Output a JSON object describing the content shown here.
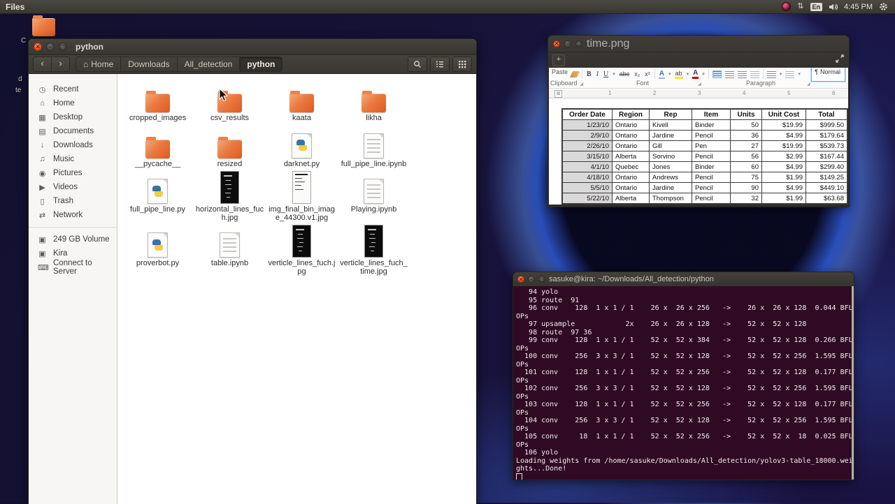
{
  "topbar": {
    "app_name": "Files",
    "keyboard_indicator": "En",
    "clock": "4:45 PM",
    "network_glyph": "⇅"
  },
  "desktop": {
    "label_fragments": [
      "C",
      "d",
      "te"
    ]
  },
  "files_window": {
    "title": "python",
    "nav": {
      "back": "‹",
      "forward": "›"
    },
    "breadcrumbs": {
      "home_glyph": "⌂",
      "home": "Home",
      "downloads": "Downloads",
      "all_detection": "All_detection",
      "python": "python"
    },
    "sidebar": {
      "places": [
        {
          "icon": "recent-icon",
          "glyph": "◷",
          "label": "Recent"
        },
        {
          "icon": "home-icon",
          "glyph": "⌂",
          "label": "Home"
        },
        {
          "icon": "desktop-icon",
          "glyph": "▦",
          "label": "Desktop"
        },
        {
          "icon": "documents-icon",
          "glyph": "▤",
          "label": "Documents"
        },
        {
          "icon": "downloads-icon",
          "glyph": "↓",
          "label": "Downloads"
        },
        {
          "icon": "music-icon",
          "glyph": "♫",
          "label": "Music"
        },
        {
          "icon": "pictures-icon",
          "glyph": "◉",
          "label": "Pictures"
        },
        {
          "icon": "videos-icon",
          "glyph": "▶",
          "label": "Videos"
        },
        {
          "icon": "trash-icon",
          "glyph": "▯",
          "label": "Trash"
        },
        {
          "icon": "network-icon",
          "glyph": "⇄",
          "label": "Network"
        }
      ],
      "devices": [
        {
          "icon": "disk-icon",
          "glyph": "▣",
          "label": "249 GB Volume"
        },
        {
          "icon": "disk-icon",
          "glyph": "▣",
          "label": "Kira"
        },
        {
          "icon": "server-icon",
          "glyph": "⌨",
          "label": "Connect to Server"
        }
      ]
    },
    "files": [
      {
        "name": "cropped_images",
        "kind": "folder"
      },
      {
        "name": "csv_results",
        "kind": "folder"
      },
      {
        "name": "kaata",
        "kind": "folder"
      },
      {
        "name": "likha",
        "kind": "folder"
      },
      {
        "name": "__pycache__",
        "kind": "folder"
      },
      {
        "name": "resized",
        "kind": "folder"
      },
      {
        "name": "darknet.py",
        "kind": "python"
      },
      {
        "name": "full_pipe_line.ipynb",
        "kind": "notebook"
      },
      {
        "name": "full_pipe_line.py",
        "kind": "python"
      },
      {
        "name": "horizontal_lines_fuch.jpg",
        "kind": "image-dark"
      },
      {
        "name": "img_final_bin_image_44300.v1.jpg",
        "kind": "image-light"
      },
      {
        "name": "Playing.ipynb",
        "kind": "notebook"
      },
      {
        "name": "proverbot.py",
        "kind": "python"
      },
      {
        "name": "table.ipynb",
        "kind": "notebook"
      },
      {
        "name": "verticle_lines_fuch.jpg",
        "kind": "image-dark"
      },
      {
        "name": "verticle_lines_fuch_time.jpg",
        "kind": "image-dark"
      }
    ]
  },
  "image_viewer": {
    "title": "time.png",
    "zoom_in_label": "+",
    "ribbon": {
      "paste_label": "Paste",
      "font_buttons": [
        "B",
        "I",
        "U",
        "abc",
        "x₂",
        "x²"
      ],
      "color_buttons": [
        "A",
        "ab",
        "A"
      ],
      "pilcrow": "¶",
      "style_box": "Normal",
      "groups": [
        "Clipboard",
        "Font",
        "Paragraph"
      ],
      "launcher_glyph": "◢"
    },
    "ruler_numbers": [
      "1",
      "2",
      "3",
      "4",
      "5",
      "6"
    ],
    "table": {
      "headers": [
        "Order Date",
        "Region",
        "Rep",
        "Item",
        "Units",
        "Unit Cost",
        "Total"
      ],
      "rows": [
        [
          "1/23/10",
          "Ontario",
          "Kivell",
          "Binder",
          "50",
          "$19.99",
          "$999.50"
        ],
        [
          "2/9/10",
          "Ontario",
          "Jardine",
          "Pencil",
          "36",
          "$4.99",
          "$179.64"
        ],
        [
          "2/26/10",
          "Ontario",
          "Gill",
          "Pen",
          "27",
          "$19.99",
          "$539.73"
        ],
        [
          "3/15/10",
          "Alberta",
          "Sorvino",
          "Pencil",
          "56",
          "$2.99",
          "$167.44"
        ],
        [
          "4/1/10",
          "Quebec",
          "Jones",
          "Binder",
          "60",
          "$4.99",
          "$299.40"
        ],
        [
          "4/18/10",
          "Ontario",
          "Andrews",
          "Pencil",
          "75",
          "$1.99",
          "$149.25"
        ],
        [
          "5/5/10",
          "Ontario",
          "Jardine",
          "Pencil",
          "90",
          "$4.99",
          "$449.10"
        ],
        [
          "5/22/10",
          "Alberta",
          "Thompson",
          "Pencil",
          "32",
          "$1.99",
          "$63.68"
        ]
      ]
    }
  },
  "terminal": {
    "title": "sasuke@kira: ~/Downloads/All_detection/python",
    "lines": [
      "   94 yolo",
      "   95 route  91",
      "   96 conv    128  1 x 1 / 1    26 x  26 x 256   ->    26 x  26 x 128  0.044 BFL",
      "OPs",
      "   97 upsample            2x    26 x  26 x 128   ->    52 x  52 x 128",
      "   98 route  97 36",
      "   99 conv    128  1 x 1 / 1    52 x  52 x 384   ->    52 x  52 x 128  0.266 BFL",
      "OPs",
      "  100 conv    256  3 x 3 / 1    52 x  52 x 128   ->    52 x  52 x 256  1.595 BFL",
      "OPs",
      "  101 conv    128  1 x 1 / 1    52 x  52 x 256   ->    52 x  52 x 128  0.177 BFL",
      "OPs",
      "  102 conv    256  3 x 3 / 1    52 x  52 x 128   ->    52 x  52 x 256  1.595 BFL",
      "OPs",
      "  103 conv    128  1 x 1 / 1    52 x  52 x 256   ->    52 x  52 x 128  0.177 BFL",
      "OPs",
      "  104 conv    256  3 x 3 / 1    52 x  52 x 128   ->    52 x  52 x 256  1.595 BFL",
      "OPs",
      "  105 conv     18  1 x 1 / 1    52 x  52 x 256   ->    52 x  52 x  18  0.025 BFL",
      "OPs",
      "  106 yolo",
      "Loading weights from /home/sasuke/Downloads/All_detection/yolov3-table_18000.wei",
      "ghts...Done!"
    ]
  },
  "colors": {
    "ubuntu_orange": "#dd4814",
    "terminal_bg": "#300a24",
    "panel_bg": "#3c3a35",
    "date_cell_bg": "#d9d9d9",
    "selection_blue": "#cde3f6"
  }
}
